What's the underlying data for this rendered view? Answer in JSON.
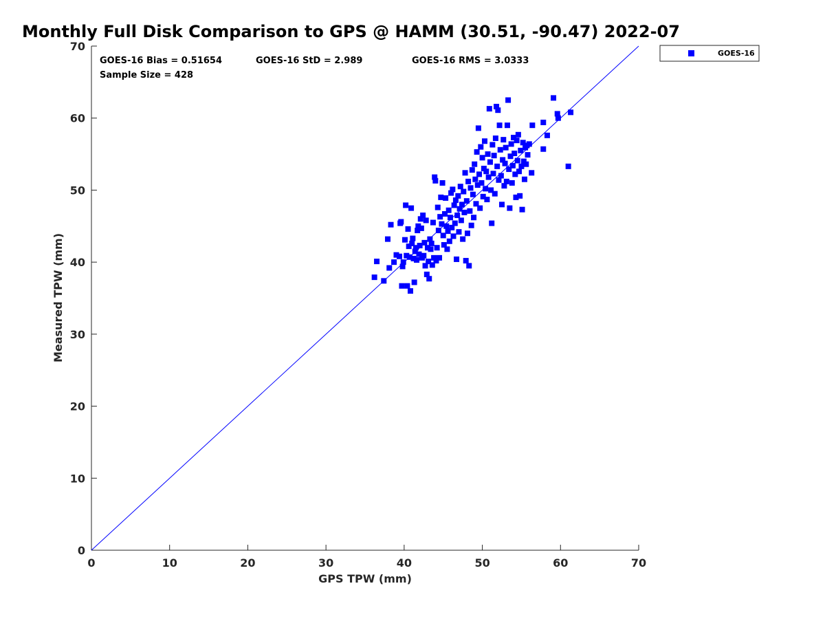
{
  "chart_data": {
    "type": "scatter",
    "title": "Monthly Full Disk Comparison to GPS @ HAMM (30.51, -90.47) 2022-07",
    "xlabel": "GPS TPW (mm)",
    "ylabel": "Measured TPW (mm)",
    "xlim": [
      0,
      70
    ],
    "ylim": [
      0,
      70
    ],
    "xticks": [
      "0",
      "10",
      "20",
      "30",
      "40",
      "50",
      "60",
      "70"
    ],
    "yticks": [
      "0",
      "10",
      "20",
      "30",
      "40",
      "50",
      "60",
      "70"
    ],
    "grid": false,
    "legend_position": "top-right-outside",
    "reference_line": {
      "x": [
        0,
        70
      ],
      "y": [
        0,
        70
      ],
      "color": "#0000ff"
    },
    "stats": {
      "bias": "GOES-16 Bias = 0.51654",
      "std": "GOES-16 StD = 2.989",
      "rms": "GOES-16 RMS = 3.0333",
      "sample_size": "Sample Size = 428"
    },
    "series": [
      {
        "name": "GOES-16",
        "color": "#0000ff",
        "marker": "square",
        "points": [
          [
            36.2,
            37.9
          ],
          [
            36.5,
            40.1
          ],
          [
            37.4,
            37.4
          ],
          [
            37.9,
            43.2
          ],
          [
            38.1,
            39.2
          ],
          [
            38.3,
            45.2
          ],
          [
            38.7,
            40.0
          ],
          [
            39.0,
            41.0
          ],
          [
            39.4,
            40.8
          ],
          [
            39.5,
            45.4
          ],
          [
            39.6,
            45.6
          ],
          [
            39.7,
            36.7
          ],
          [
            39.8,
            39.4
          ],
          [
            39.9,
            40.0
          ],
          [
            40.1,
            43.1
          ],
          [
            40.2,
            47.9
          ],
          [
            40.3,
            40.9
          ],
          [
            40.4,
            36.7
          ],
          [
            40.5,
            44.6
          ],
          [
            40.6,
            42.2
          ],
          [
            40.7,
            40.7
          ],
          [
            40.8,
            36.0
          ],
          [
            40.9,
            47.5
          ],
          [
            41.0,
            42.6
          ],
          [
            41.1,
            43.3
          ],
          [
            41.2,
            40.5
          ],
          [
            41.3,
            37.2
          ],
          [
            41.4,
            41.5
          ],
          [
            41.5,
            42.0
          ],
          [
            41.6,
            40.3
          ],
          [
            41.7,
            44.4
          ],
          [
            41.8,
            45.0
          ],
          [
            41.9,
            41.1
          ],
          [
            42.0,
            42.3
          ],
          [
            42.1,
            46.0
          ],
          [
            42.2,
            44.7
          ],
          [
            42.3,
            40.6
          ],
          [
            42.4,
            46.5
          ],
          [
            42.5,
            40.9
          ],
          [
            42.6,
            42.7
          ],
          [
            42.7,
            39.5
          ],
          [
            42.8,
            45.8
          ],
          [
            42.9,
            38.3
          ],
          [
            43.0,
            42.0
          ],
          [
            43.1,
            40.1
          ],
          [
            43.2,
            37.7
          ],
          [
            43.3,
            43.2
          ],
          [
            43.4,
            41.8
          ],
          [
            43.5,
            42.6
          ],
          [
            43.6,
            39.6
          ],
          [
            43.7,
            45.5
          ],
          [
            43.8,
            40.6
          ],
          [
            43.9,
            51.8
          ],
          [
            44.0,
            51.3
          ],
          [
            44.1,
            40.2
          ],
          [
            44.2,
            42.0
          ],
          [
            44.3,
            47.6
          ],
          [
            44.4,
            44.4
          ],
          [
            44.5,
            40.6
          ],
          [
            44.6,
            46.3
          ],
          [
            44.7,
            49.0
          ],
          [
            44.8,
            45.3
          ],
          [
            44.9,
            51.0
          ],
          [
            45.0,
            43.7
          ],
          [
            45.1,
            42.4
          ],
          [
            45.2,
            46.7
          ],
          [
            45.3,
            48.9
          ],
          [
            45.4,
            45.0
          ],
          [
            45.5,
            41.8
          ],
          [
            45.6,
            44.3
          ],
          [
            45.7,
            47.2
          ],
          [
            45.8,
            42.9
          ],
          [
            45.9,
            46.2
          ],
          [
            46.0,
            49.6
          ],
          [
            46.1,
            44.8
          ],
          [
            46.2,
            50.1
          ],
          [
            46.3,
            43.6
          ],
          [
            46.4,
            47.9
          ],
          [
            46.5,
            45.4
          ],
          [
            46.6,
            48.6
          ],
          [
            46.7,
            40.4
          ],
          [
            46.8,
            46.5
          ],
          [
            46.9,
            49.2
          ],
          [
            47.0,
            44.2
          ],
          [
            47.1,
            47.4
          ],
          [
            47.2,
            50.5
          ],
          [
            47.3,
            45.8
          ],
          [
            47.4,
            48.0
          ],
          [
            47.5,
            43.2
          ],
          [
            47.6,
            49.8
          ],
          [
            47.7,
            46.9
          ],
          [
            47.8,
            52.4
          ],
          [
            47.9,
            40.2
          ],
          [
            48.0,
            48.5
          ],
          [
            48.1,
            44.0
          ],
          [
            48.2,
            51.2
          ],
          [
            48.3,
            39.5
          ],
          [
            48.4,
            47.1
          ],
          [
            48.5,
            50.3
          ],
          [
            48.6,
            45.1
          ],
          [
            48.7,
            52.8
          ],
          [
            48.8,
            49.4
          ],
          [
            48.9,
            46.2
          ],
          [
            49.0,
            53.6
          ],
          [
            49.1,
            51.5
          ],
          [
            49.2,
            48.1
          ],
          [
            49.3,
            55.3
          ],
          [
            49.4,
            50.7
          ],
          [
            49.5,
            58.6
          ],
          [
            49.6,
            52.2
          ],
          [
            49.7,
            47.5
          ],
          [
            49.8,
            56.0
          ],
          [
            49.9,
            51.0
          ],
          [
            50.0,
            54.5
          ],
          [
            50.1,
            49.1
          ],
          [
            50.2,
            53.0
          ],
          [
            50.3,
            56.8
          ],
          [
            50.4,
            50.2
          ],
          [
            50.5,
            52.6
          ],
          [
            50.6,
            48.7
          ],
          [
            50.7,
            55.0
          ],
          [
            50.8,
            51.8
          ],
          [
            50.9,
            61.3
          ],
          [
            51.0,
            53.9
          ],
          [
            51.1,
            50.0
          ],
          [
            51.2,
            45.4
          ],
          [
            51.3,
            56.3
          ],
          [
            51.4,
            52.3
          ],
          [
            51.5,
            54.8
          ],
          [
            51.6,
            49.5
          ],
          [
            51.7,
            57.2
          ],
          [
            51.8,
            61.6
          ],
          [
            51.9,
            53.3
          ],
          [
            52.0,
            61.1
          ],
          [
            52.1,
            51.4
          ],
          [
            52.2,
            59.0
          ],
          [
            52.3,
            55.6
          ],
          [
            52.4,
            52.0
          ],
          [
            52.5,
            48.0
          ],
          [
            52.6,
            54.2
          ],
          [
            52.7,
            57.0
          ],
          [
            52.8,
            50.6
          ],
          [
            52.9,
            53.7
          ],
          [
            53.0,
            55.9
          ],
          [
            53.1,
            51.2
          ],
          [
            53.2,
            59.0
          ],
          [
            53.3,
            62.5
          ],
          [
            53.4,
            52.9
          ],
          [
            53.5,
            47.5
          ],
          [
            53.6,
            54.7
          ],
          [
            53.7,
            56.4
          ],
          [
            53.8,
            51.0
          ],
          [
            53.9,
            53.4
          ],
          [
            54.0,
            57.3
          ],
          [
            54.1,
            55.1
          ],
          [
            54.2,
            52.2
          ],
          [
            54.3,
            49.0
          ],
          [
            54.4,
            56.9
          ],
          [
            54.5,
            54.1
          ],
          [
            54.6,
            57.7
          ],
          [
            54.7,
            52.6
          ],
          [
            54.8,
            49.2
          ],
          [
            54.9,
            55.5
          ],
          [
            55.0,
            53.3
          ],
          [
            55.1,
            47.3
          ],
          [
            55.2,
            56.6
          ],
          [
            55.3,
            54.0
          ],
          [
            55.4,
            51.5
          ],
          [
            55.5,
            55.9
          ],
          [
            55.6,
            53.6
          ],
          [
            55.7,
            56.2
          ],
          [
            55.8,
            54.9
          ],
          [
            56.0,
            56.4
          ],
          [
            56.3,
            52.4
          ],
          [
            56.4,
            59.0
          ],
          [
            57.8,
            59.4
          ],
          [
            57.8,
            55.7
          ],
          [
            58.3,
            57.6
          ],
          [
            59.1,
            62.8
          ],
          [
            59.6,
            60.6
          ],
          [
            59.7,
            60.0
          ],
          [
            61.0,
            53.3
          ],
          [
            61.3,
            60.8
          ]
        ]
      }
    ]
  }
}
